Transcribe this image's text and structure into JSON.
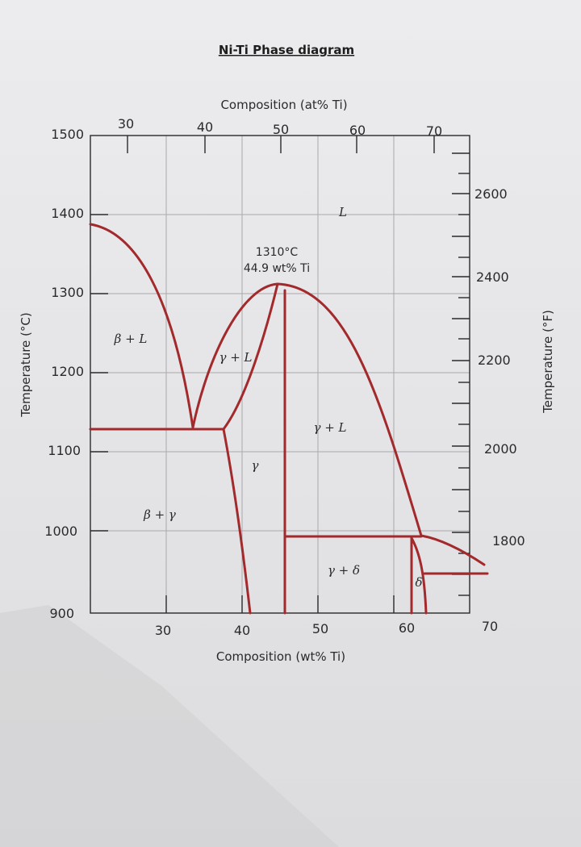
{
  "title": "Ni-Ti Phase diagram",
  "axes": {
    "top_label": "Composition (at% Ti)",
    "bottom_label": "Composition (wt% Ti)",
    "left_label": "Temperature (°C)",
    "right_label": "Temperature (°F)",
    "top_ticks": [
      "30",
      "40",
      "50",
      "60",
      "70"
    ],
    "bottom_ticks": [
      "30",
      "40",
      "50",
      "60",
      "70"
    ],
    "left_ticks": [
      "1500",
      "1400",
      "1300",
      "1200",
      "1100",
      "1000",
      "900"
    ],
    "right_ticks": [
      "2600",
      "2400",
      "2200",
      "2000",
      "1800"
    ]
  },
  "regions": {
    "liquid": "L",
    "beta_l": "β + L",
    "gamma_l_left": "γ + L",
    "gamma_l_right": "γ + L",
    "gamma": "γ",
    "beta_gamma": "β + γ",
    "gamma_delta": "γ + δ",
    "delta": "δ"
  },
  "annotation": {
    "temp": "1310°C",
    "comp": "44.9 wt% Ti"
  },
  "colors": {
    "phase_boundary": "#a32a2c",
    "grid": "#a9a9ad",
    "text": "#2a2a2a"
  },
  "chart_data": {
    "type": "diagram",
    "x_axis": {
      "unit": "wt% Ti",
      "range": [
        21,
        70
      ]
    },
    "y_axis": {
      "unit": "°C",
      "range": [
        900,
        1500
      ]
    },
    "congruent_melting_point": {
      "temperature_C": 1310,
      "composition_wt_Ti": 44.9
    },
    "eutectic_temperature_C": 1118,
    "peritectic_temperature_C": 990
  }
}
